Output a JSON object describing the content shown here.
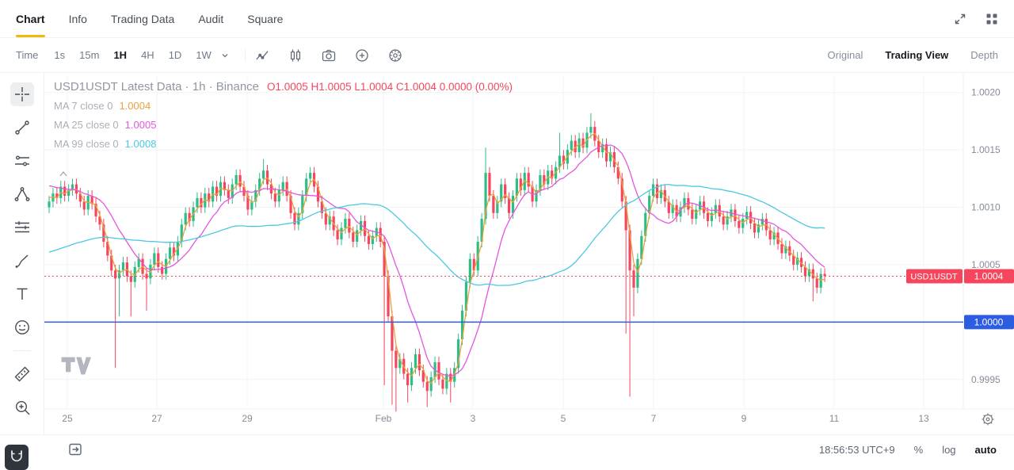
{
  "colors": {
    "accent": "#f0b90b",
    "up": "#2ebd85",
    "down": "#f6465d",
    "blue": "#2c5ce2",
    "text_gray": "#707a8a"
  },
  "topnav": {
    "tabs": [
      {
        "label": "Chart",
        "active": true
      },
      {
        "label": "Info"
      },
      {
        "label": "Trading Data"
      },
      {
        "label": "Audit"
      },
      {
        "label": "Square"
      }
    ],
    "icons": [
      "expand-icon",
      "apps-grid-icon"
    ]
  },
  "toolbar": {
    "time_label": "Time",
    "intervals": [
      {
        "label": "1s"
      },
      {
        "label": "15m"
      },
      {
        "label": "1H",
        "active": true
      },
      {
        "label": "4H"
      },
      {
        "label": "1D"
      },
      {
        "label": "1W"
      }
    ],
    "icons": [
      "indicator-chart-icon",
      "candlestick-style-icon",
      "camera-icon",
      "add-circle-icon",
      "settings-circle-icon"
    ],
    "view_modes": [
      {
        "label": "Original"
      },
      {
        "label": "Trading View",
        "active": true
      },
      {
        "label": "Depth"
      }
    ]
  },
  "sidebar": {
    "tools": [
      {
        "name": "crosshair",
        "active": true
      },
      {
        "name": "trend-line"
      },
      {
        "name": "horizontal-lines"
      },
      {
        "name": "pitchfork"
      },
      {
        "name": "fib-retracement"
      },
      {
        "name": "brush"
      },
      {
        "name": "text"
      },
      {
        "name": "emoji"
      },
      {
        "name": "ruler"
      },
      {
        "name": "zoom-in"
      }
    ],
    "bottom_tool": "magnet"
  },
  "chart": {
    "title": "USD1USDT Latest Data · 1h · Binance",
    "ohlc": "O1.0005 H1.0005 L1.0004 C1.0004 0.0000 (0.00%)",
    "legend": [
      {
        "label": "MA 7 close 0",
        "value": "1.0004",
        "color": "#e8a33d"
      },
      {
        "label": "MA 25 close 0",
        "value": "1.0005",
        "color": "#e356de"
      },
      {
        "label": "MA 99 close 0",
        "value": "1.0008",
        "color": "#4bc8e1"
      }
    ],
    "price_badge": {
      "symbol": "USD1USDT",
      "price": "1.0004",
      "color": "#f6465d"
    },
    "level_badge": {
      "price": "1.0000",
      "color": "#2c5ce2"
    }
  },
  "bottombar": {
    "time": "18:56:53 UTC+9",
    "percent": "%",
    "log": "log",
    "auto": "auto"
  },
  "chart_data": {
    "type": "candlestick",
    "symbol": "USD1USDT",
    "interval": "1h",
    "exchange": "Binance",
    "x_labels": [
      "25",
      "27",
      "29",
      "Feb",
      "3",
      "5",
      "7",
      "9",
      "11",
      "13"
    ],
    "y_ticks": [
      "1.0020",
      "1.0015",
      "1.0010",
      "1.0005",
      "1.0000",
      "0.9995"
    ],
    "y_range": [
      0.99925,
      1.00215
    ],
    "grid": true,
    "up_color": "#2ebd85",
    "down_color": "#f6465d",
    "first_open": 1.001,
    "closes": [
      1.00105,
      1.00112,
      1.00108,
      1.00118,
      1.0011,
      1.00115,
      1.0012,
      1.00112,
      1.00105,
      1.00098,
      1.0011,
      1.00103,
      1.00092,
      1.00085,
      1.0007,
      1.00058,
      1.00045,
      1.00038,
      1.00045,
      1.00052,
      1.0004,
      1.00035,
      1.00048,
      1.00055,
      1.00042,
      1.00038,
      1.0005,
      1.0006,
      1.00048,
      1.00042,
      1.00055,
      1.00065,
      1.00058,
      1.0007,
      1.00085,
      1.00095,
      1.00088,
      1.001,
      1.00108,
      1.001,
      1.00112,
      1.00105,
      1.00118,
      1.0011,
      1.00122,
      1.00115,
      1.00108,
      1.0012,
      1.00128,
      1.00118,
      1.0011,
      1.00098,
      1.00105,
      1.00115,
      1.00125,
      1.00132,
      1.0012,
      1.00112,
      1.00105,
      1.00115,
      1.00122,
      1.0011,
      1.00095,
      1.00085,
      1.00095,
      1.0011,
      1.00125,
      1.0013,
      1.00118,
      1.00105,
      1.00095,
      1.00085,
      1.00092,
      1.0008,
      1.00072,
      1.00082,
      1.0009,
      1.00078,
      1.0007,
      1.0008,
      1.00088,
      1.00075,
      1.00068,
      1.00075,
      1.00082,
      1.0007,
      1.0004,
      1.00005,
      0.99975,
      0.9996,
      0.99968,
      0.99955,
      0.99945,
      0.9996,
      0.99972,
      0.99958,
      0.99948,
      0.9994,
      0.99952,
      0.99965,
      0.9995,
      0.99942,
      0.99955,
      0.99948,
      0.9996,
      0.99985,
      1.0001,
      1.00035,
      1.00055,
      1.00045,
      1.0007,
      1.0009,
      1.0013,
      1.0011,
      1.00095,
      1.00105,
      1.0012,
      1.00108,
      1.00095,
      1.0011,
      1.00125,
      1.00115,
      1.0013,
      1.00118,
      1.00105,
      1.00115,
      1.00128,
      1.0012,
      1.00132,
      1.00125,
      1.00135,
      1.00145,
      1.00138,
      1.0015,
      1.00158,
      1.00148,
      1.0016,
      1.00152,
      1.00165,
      1.0017,
      1.00158,
      1.00148,
      1.00155,
      1.0014,
      1.00148,
      1.00135,
      1.00125,
      1.00105,
      1.0008,
      1.00045,
      1.0003,
      1.00055,
      1.00075,
      1.00095,
      1.0011,
      1.0012,
      1.00108,
      1.00115,
      1.00105,
      1.00095,
      1.00102,
      1.00092,
      1.001,
      1.00108,
      1.00098,
      1.0009,
      1.00098,
      1.00105,
      1.00095,
      1.00088,
      1.00095,
      1.00102,
      1.00092,
      1.00085,
      1.00092,
      1.00098,
      1.00088,
      1.00082,
      1.0009,
      1.00096,
      1.00086,
      1.00078,
      1.00085,
      1.0009,
      1.0008,
      1.00072,
      1.00078,
      1.00068,
      1.0006,
      1.00066,
      1.00058,
      1.0005,
      1.00056,
      1.00048,
      1.0004,
      1.00046,
      1.00038,
      1.0003,
      1.00042,
      1.0004
    ],
    "special_lows": {
      "17": 0.9996,
      "18": 1.00005,
      "21": 1.00005,
      "25": 1.0001,
      "86": 0.99945,
      "88": 0.99928,
      "89": 0.99922,
      "92": 0.9993,
      "97": 0.99926,
      "103": 0.9993,
      "148": 0.9999,
      "149": 0.99935,
      "150": 1.00005,
      "196": 1.00018
    },
    "special_highs": {
      "55": 1.00142,
      "112": 1.00152,
      "131": 1.00165,
      "139": 1.00182
    },
    "ma_overlays": [
      {
        "name": "MA7",
        "window": 3,
        "pad": 1.0011,
        "color": "#e8a33d"
      },
      {
        "name": "MA25",
        "window": 12,
        "pad": 1.0012,
        "color": "#e356de"
      },
      {
        "name": "MA99",
        "window": 48,
        "pad": 1.0006,
        "color": "#4bc8e1"
      }
    ],
    "hline": {
      "price": 1.0,
      "color": "#2c5ce2"
    },
    "last_price_line": {
      "price": 1.0004,
      "color": "#f6465d",
      "style": "dotted"
    },
    "legend_position": "top-left"
  }
}
